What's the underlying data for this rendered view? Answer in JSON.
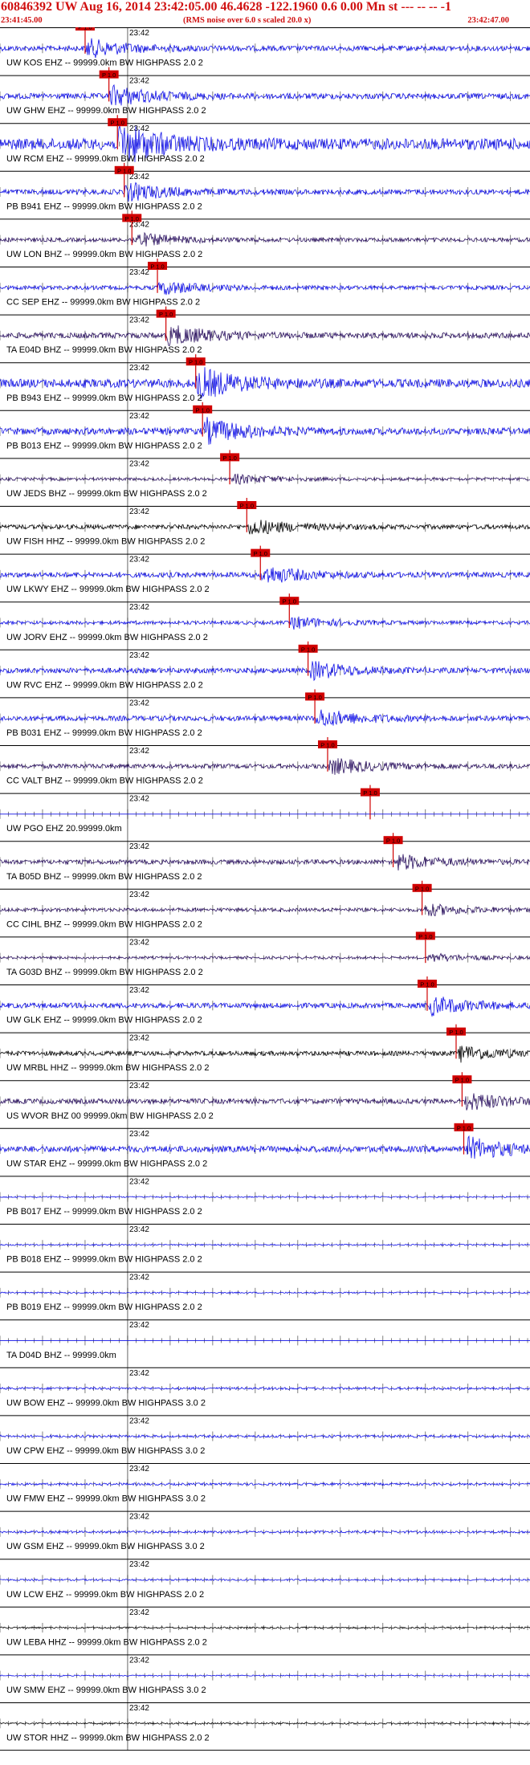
{
  "header": {
    "title": "60846392 UW Aug 16, 2014 23:42:05.00   46.4628 -122.1960  0.6 0.00 Mn st --- -- --   -1",
    "start_time": "23:41:45.00",
    "scale_note": "(RMS noise over 6.0 s scaled 20.0 x)",
    "end_time": "23:42:47.00"
  },
  "chart_data": {
    "type": "line",
    "title": "60846392 UW Aug 16, 2014 23:42:05.00   46.4628 -122.1960  0.6 0.00 Mn st --- -- --   -1",
    "x_start": "23:41:45.00",
    "x_end": "23:42:47.00",
    "x_range_s": [
      0,
      62
    ],
    "minute_label": "23:42",
    "minute_mark_s": 15.0,
    "pick_label": "P 1.0",
    "colors": {
      "blue": "#1010e8",
      "purple": "#2a1060",
      "black": "#000000",
      "pick": "#d00000",
      "title": "#d01010"
    },
    "traces": [
      {
        "label": "UW KOS EHZ -- 99999.0km BW  HIGHPASS  2.0  2",
        "color": "blue",
        "pick_s": 10.0,
        "amplitude": 0.45
      },
      {
        "label": "UW GHW EHZ -- 99999.0km BW  HIGHPASS  2.0  2",
        "color": "blue",
        "pick_s": 12.8,
        "amplitude": 0.5
      },
      {
        "label": "UW RCM EHZ -- 99999.0km BW  HIGHPASS  2.0  2",
        "color": "blue",
        "pick_s": 13.8,
        "amplitude": 1.0
      },
      {
        "label": "PB B941 EHZ -- 99999.0km BW  HIGHPASS  2.0  2",
        "color": "blue",
        "pick_s": 14.6,
        "amplitude": 0.45
      },
      {
        "label": "UW LON BHZ -- 99999.0km BW  HIGHPASS  2.0  2",
        "color": "purple",
        "pick_s": 15.5,
        "amplitude": 0.35
      },
      {
        "label": "CC SEP EHZ -- 99999.0km BW  HIGHPASS  2.0  2",
        "color": "blue",
        "pick_s": 18.5,
        "amplitude": 0.35
      },
      {
        "label": "TA E04D BHZ -- 99999.0km BW  HIGHPASS  2.0  2",
        "color": "purple",
        "pick_s": 19.5,
        "amplitude": 0.5
      },
      {
        "label": "PB B943 EHZ -- 99999.0km BW  HIGHPASS  2.0  2",
        "color": "blue",
        "pick_s": 23.0,
        "amplitude": 0.75
      },
      {
        "label": "PB B013 EHZ -- 99999.0km BW  HIGHPASS  2.0  2",
        "color": "blue",
        "pick_s": 23.8,
        "amplitude": 0.6
      },
      {
        "label": "UW JEDS BHZ -- 99999.0km BW  HIGHPASS  2.0  2",
        "color": "purple",
        "pick_s": 27.0,
        "amplitude": 0.25
      },
      {
        "label": "UW FISH HHZ -- 99999.0km BW  HIGHPASS  2.0  2",
        "color": "black",
        "pick_s": 29.0,
        "amplitude": 0.4
      },
      {
        "label": "UW LKWY EHZ -- 99999.0km BW  HIGHPASS  2.0  2",
        "color": "blue",
        "pick_s": 30.6,
        "amplitude": 0.45
      },
      {
        "label": "UW JORV EHZ -- 99999.0km BW  HIGHPASS  2.0  2",
        "color": "blue",
        "pick_s": 34.0,
        "amplitude": 0.3
      },
      {
        "label": "UW RVC EHZ -- 99999.0km BW  HIGHPASS  2.0  2",
        "color": "blue",
        "pick_s": 36.2,
        "amplitude": 0.45
      },
      {
        "label": "PB B031 EHZ -- 99999.0km BW  HIGHPASS  2.0  2",
        "color": "blue",
        "pick_s": 37.0,
        "amplitude": 0.45
      },
      {
        "label": "CC VALT BHZ -- 99999.0km BW  HIGHPASS  2.0  2",
        "color": "purple",
        "pick_s": 38.5,
        "amplitude": 0.4
      },
      {
        "label": "UW PGO EHZ 20.99999.0km",
        "color": "blue",
        "pick_s": 43.5,
        "amplitude": 0.0
      },
      {
        "label": "TA B05D BHZ -- 99999.0km BW  HIGHPASS  2.0  2",
        "color": "purple",
        "pick_s": 46.2,
        "amplitude": 0.4
      },
      {
        "label": "CC CIHL BHZ -- 99999.0km BW  HIGHPASS  2.0  2",
        "color": "purple",
        "pick_s": 49.6,
        "amplitude": 0.3
      },
      {
        "label": "TA G03D BHZ -- 99999.0km BW  HIGHPASS  2.0  2",
        "color": "purple",
        "pick_s": 50.0,
        "amplitude": 0.22
      },
      {
        "label": "UW GLK EHZ -- 99999.0km BW  HIGHPASS  2.0  2",
        "color": "blue",
        "pick_s": 50.2,
        "amplitude": 0.45
      },
      {
        "label": "UW MRBL HHZ -- 99999.0km BW  HIGHPASS  2.0  2",
        "color": "black",
        "pick_s": 53.6,
        "amplitude": 0.4
      },
      {
        "label": "US WVOR BHZ 00 99999.0km BW  HIGHPASS  2.0  2",
        "color": "purple",
        "pick_s": 54.3,
        "amplitude": 0.45
      },
      {
        "label": "UW STAR EHZ -- 99999.0km BW  HIGHPASS  2.0  2",
        "color": "blue",
        "pick_s": 54.5,
        "amplitude": 0.55
      },
      {
        "label": "PB B017 EHZ -- 99999.0km BW  HIGHPASS  2.0  2",
        "color": "blue",
        "pick_s": null,
        "amplitude": 0.12
      },
      {
        "label": "PB B018 EHZ -- 99999.0km BW  HIGHPASS  2.0  2",
        "color": "blue",
        "pick_s": null,
        "amplitude": 0.12
      },
      {
        "label": "PB B019 EHZ -- 99999.0km BW  HIGHPASS  2.0  2",
        "color": "blue",
        "pick_s": null,
        "amplitude": 0.12
      },
      {
        "label": "TA D04D BHZ -- 99999.0km",
        "color": "blue",
        "pick_s": null,
        "amplitude": 0.0
      },
      {
        "label": "UW BOW EHZ -- 99999.0km BW  HIGHPASS  3.0  2",
        "color": "blue",
        "pick_s": null,
        "amplitude": 0.2
      },
      {
        "label": "UW CPW EHZ -- 99999.0km BW  HIGHPASS  3.0  2",
        "color": "blue",
        "pick_s": null,
        "amplitude": 0.22
      },
      {
        "label": "UW FMW EHZ -- 99999.0km BW  HIGHPASS  3.0  2",
        "color": "blue",
        "pick_s": null,
        "amplitude": 0.2
      },
      {
        "label": "UW GSM EHZ -- 99999.0km BW  HIGHPASS  3.0  2",
        "color": "blue",
        "pick_s": null,
        "amplitude": 0.2
      },
      {
        "label": "UW LCW EHZ -- 99999.0km BW  HIGHPASS  2.0  2",
        "color": "blue",
        "pick_s": null,
        "amplitude": 0.15
      },
      {
        "label": "UW LEBA HHZ -- 99999.0km BW  HIGHPASS  2.0  2",
        "color": "black",
        "pick_s": null,
        "amplitude": 0.15
      },
      {
        "label": "UW SMW EHZ -- 99999.0km BW  HIGHPASS  3.0  2",
        "color": "blue",
        "pick_s": null,
        "amplitude": 0.1
      },
      {
        "label": "UW STOR HHZ -- 99999.0km BW  HIGHPASS  2.0  2",
        "color": "black",
        "pick_s": null,
        "amplitude": 0.15
      }
    ]
  }
}
